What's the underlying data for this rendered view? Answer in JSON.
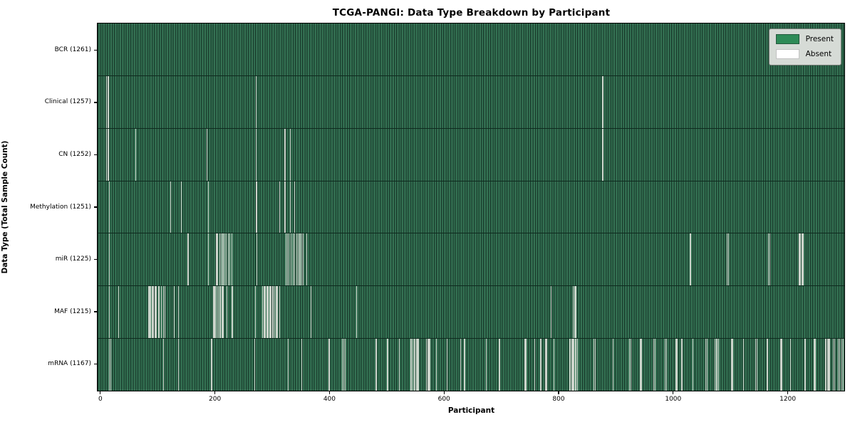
{
  "title": "TCGA-PANGI: Data Type Breakdown by Participant",
  "colors": {
    "present_green": "#2e8b57",
    "bar_fill": "#2e6a4c",
    "bar_edge": "#173629",
    "absent_line": "#ccd4cb",
    "legend_background": "#d6dbd6",
    "spine": "#000000",
    "figure_background": "#ffffff"
  },
  "chart_data": {
    "type": "heatmap",
    "subtype": "missingness-matrix",
    "title": "TCGA-PANGI: Data Type Breakdown by Participant",
    "xlabel": "Participant",
    "ylabel": "Data Type (Total Sample Count)",
    "grid": false,
    "legend_position": "upper right",
    "legend": [
      {
        "label": "Present",
        "color": "#2e8b57"
      },
      {
        "label": "Absent",
        "color": "#ffffff"
      }
    ],
    "x_axis": {
      "ticks": [
        0,
        200,
        400,
        600,
        800,
        1000,
        1200
      ],
      "min": -4,
      "max": 1298
    },
    "total_participants": 1261,
    "rows": [
      {
        "data_type": "BCR",
        "label": "BCR (1261)",
        "present_count": 1261,
        "absent_count": 0,
        "absent_positions_approx": []
      },
      {
        "data_type": "Clinical",
        "label": "Clinical (1257)",
        "present_count": 1257,
        "absent_count": 4,
        "absent_positions_approx": [
          11,
          14,
          272,
          876
        ]
      },
      {
        "data_type": "CN",
        "label": "CN (1252)",
        "present_count": 1252,
        "absent_count": 9,
        "absent_positions_approx": [
          11,
          14,
          62,
          186,
          272,
          322,
          323,
          331,
          876
        ]
      },
      {
        "data_type": "Methylation",
        "label": "Methylation (1251)",
        "present_count": 1251,
        "absent_count": 10,
        "absent_positions_approx": [
          16,
          123,
          141,
          188,
          272,
          273,
          313,
          322,
          331,
          339
        ]
      },
      {
        "data_type": "miR",
        "label": "miR (1225)",
        "present_count": 1225,
        "absent_count": 36,
        "absent_positions_approx": [
          16,
          153,
          188,
          202,
          204,
          208,
          211,
          214,
          217,
          220,
          223,
          226,
          229,
          273,
          324,
          326,
          329,
          333,
          336,
          339,
          342,
          345,
          348,
          351,
          354,
          360,
          1028,
          1030,
          1093,
          1095,
          1165,
          1167,
          1219,
          1221,
          1224,
          1226
        ]
      },
      {
        "data_type": "MAF",
        "label": "MAF (1215)",
        "present_count": 1215,
        "absent_count": 46,
        "absent_positions_approx": [
          16,
          32,
          84,
          86,
          88,
          91,
          93,
          96,
          98,
          101,
          103,
          106,
          110,
          113,
          129,
          136,
          197,
          199,
          201,
          203,
          206,
          208,
          210,
          212,
          214,
          221,
          230,
          270,
          283,
          286,
          288,
          291,
          293,
          296,
          298,
          301,
          304,
          307,
          309,
          313,
          367,
          447,
          786,
          825,
          827,
          829
        ]
      },
      {
        "data_type": "mRNA",
        "label": "mRNA (1167)",
        "present_count": 1167,
        "absent_count": 94,
        "absent_positions_approx": [
          16,
          18,
          110,
          136,
          194,
          269,
          328,
          351,
          399,
          422,
          424,
          427,
          481,
          501,
          521,
          541,
          543,
          545,
          547,
          549,
          551,
          553,
          555,
          569,
          571,
          573,
          575,
          586,
          605,
          628,
          634,
          636,
          673,
          696,
          740,
          742,
          757,
          767,
          769,
          776,
          778,
          791,
          819,
          822,
          824,
          826,
          828,
          830,
          832,
          861,
          863,
          894,
          923,
          925,
          942,
          944,
          965,
          967,
          985,
          987,
          1004,
          1006,
          1014,
          1033,
          1056,
          1058,
          1072,
          1074,
          1076,
          1078,
          1101,
          1103,
          1121,
          1143,
          1145,
          1163,
          1186,
          1188,
          1203,
          1228,
          1230,
          1245,
          1247,
          1264,
          1266,
          1268,
          1270,
          1272,
          1278,
          1280,
          1287,
          1289,
          1293,
          1295
        ]
      }
    ]
  }
}
